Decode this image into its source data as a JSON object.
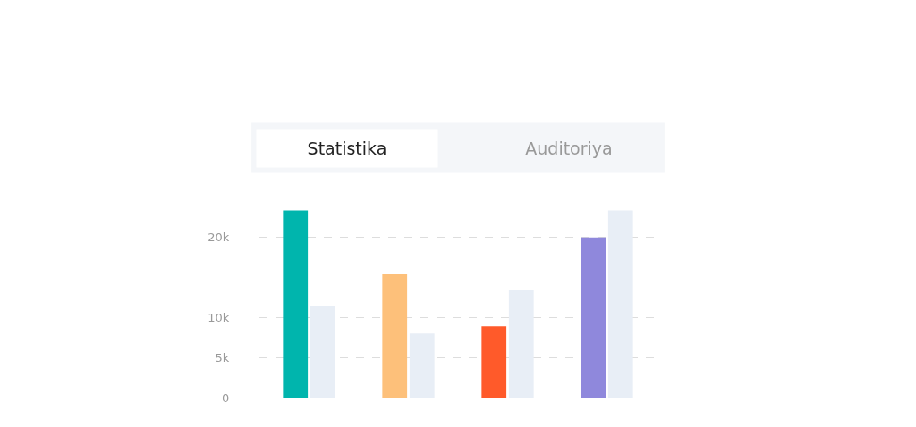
{
  "chart_data": {
    "type": "bar",
    "annotations": [
      "Statistika",
      "Auditoriya"
    ],
    "categories": [
      null,
      null,
      null,
      null
    ],
    "series": [
      {
        "colors": [
          "#00b5ad",
          "#fdc07a",
          "#ff5a2a",
          "#8f88dc"
        ],
        "values": [
          23400,
          15400,
          8900,
          20000
        ]
      },
      {
        "color": "#e8eef6",
        "values": [
          11400,
          8000,
          13400,
          23400
        ]
      }
    ],
    "ylim": [
      0,
      24000
    ],
    "yticks": [
      0,
      {
        "value": 5000,
        "label": "5k"
      },
      {
        "value": 10000,
        "label": "10k"
      },
      {
        "value": 20000,
        "label": "20k"
      }
    ],
    "grid": "y",
    "tick_labels": "y"
  }
}
